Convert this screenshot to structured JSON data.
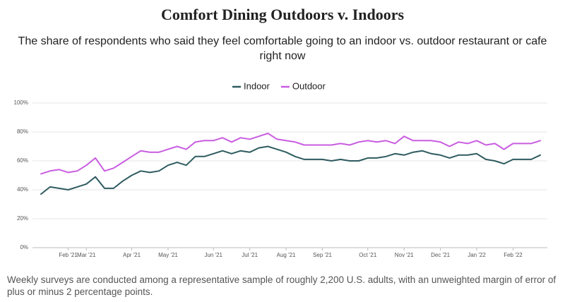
{
  "chart_data": {
    "type": "line",
    "title": "Comfort Dining Outdoors v. Indoors",
    "subtitle": "The share of respondents who said they feel comfortable going to an indoor vs. outdoor restaurant or cafe right now",
    "footnote": "Weekly surveys are conducted among a representative sample of roughly 2,200 U.S. adults, with an unweighted margin of error of plus or minus 2 percentage points.",
    "categories": [
      null,
      null,
      null,
      "Feb '21",
      null,
      "Mar '21",
      null,
      null,
      null,
      null,
      "Apr '21",
      null,
      null,
      null,
      "May '21",
      null,
      null,
      null,
      null,
      "Jun '21",
      null,
      null,
      null,
      "Jul '21",
      null,
      null,
      null,
      "Aug '21",
      null,
      null,
      null,
      "Sep '21",
      null,
      null,
      null,
      null,
      "Oct '21",
      null,
      null,
      null,
      "Nov '21",
      null,
      null,
      null,
      "Dec '21",
      null,
      null,
      null,
      "Jan '22",
      null,
      null,
      null,
      "Feb '22",
      null,
      null,
      null
    ],
    "series": [
      {
        "name": "Indoor",
        "color": "#2e5b5f",
        "values": [
          37,
          42,
          41,
          40,
          42,
          44,
          49,
          41,
          41,
          46,
          50,
          53,
          52,
          53,
          57,
          59,
          57,
          63,
          63,
          65,
          67,
          65,
          67,
          66,
          69,
          70,
          68,
          66,
          63,
          61,
          61,
          61,
          60,
          61,
          60,
          60,
          62,
          62,
          63,
          65,
          64,
          66,
          67,
          65,
          64,
          62,
          64,
          64,
          65,
          61,
          60,
          58,
          61,
          61,
          61,
          64
        ]
      },
      {
        "name": "Outdoor",
        "color": "#c95de0",
        "values": [
          51,
          53,
          54,
          52,
          53,
          57,
          62,
          53,
          55,
          59,
          63,
          67,
          66,
          66,
          68,
          70,
          68,
          73,
          74,
          74,
          76,
          73,
          76,
          75,
          77,
          79,
          75,
          74,
          73,
          71,
          71,
          71,
          71,
          72,
          71,
          73,
          74,
          73,
          74,
          72,
          77,
          74,
          74,
          74,
          73,
          70,
          73,
          72,
          74,
          71,
          72,
          68,
          72,
          72,
          72,
          74
        ]
      }
    ],
    "ylim": [
      0,
      100
    ],
    "yticks": [
      {
        "value": 0,
        "label": "0%"
      },
      {
        "value": 20,
        "label": "20%"
      },
      {
        "value": 40,
        "label": "40%"
      },
      {
        "value": 60,
        "label": "60%"
      },
      {
        "value": 80,
        "label": "80%"
      },
      {
        "value": 100,
        "label": "100%"
      }
    ],
    "grid": true
  }
}
